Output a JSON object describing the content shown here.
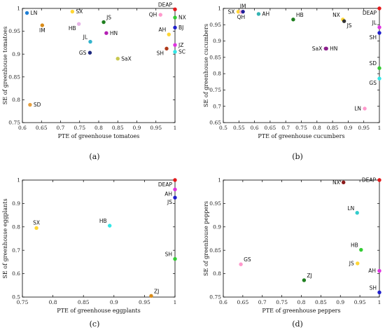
{
  "chart_data": [
    {
      "type": "scatter",
      "caption": "(a)",
      "xlabel": "PTE of greenhouse tomatoes",
      "ylabel": "SE of greenhouse tomatoes",
      "xlim": [
        0.6,
        1.0
      ],
      "ylim": [
        0.75,
        1.0
      ],
      "xticks": [
        "0.6",
        "0.65",
        "0.7",
        "0.75",
        "0.8",
        "0.85",
        "0.9",
        "0.95",
        "1"
      ],
      "yticks": [
        "0.75",
        "0.8",
        "0.85",
        "0.9",
        "0.95",
        "1"
      ],
      "points": [
        {
          "label": "DEAP",
          "x": 1.0,
          "y": 0.998,
          "color": "#e41a1c",
          "lpos": "left-above"
        },
        {
          "label": "QH",
          "x": 0.962,
          "y": 0.986,
          "color": "#ff99cc",
          "lpos": "left"
        },
        {
          "label": "NX",
          "x": 1.0,
          "y": 0.98,
          "color": "#33cc33",
          "lpos": "right"
        },
        {
          "label": "BJ",
          "x": 1.0,
          "y": 0.958,
          "color": "#1f1fcc",
          "lpos": "right"
        },
        {
          "label": "AH",
          "x": 0.984,
          "y": 0.943,
          "color": "#ffd633",
          "lpos": "left-above"
        },
        {
          "label": "JZ",
          "x": 1.0,
          "y": 0.92,
          "color": "#e033e0",
          "lpos": "right"
        },
        {
          "label": "SH",
          "x": 0.978,
          "y": 0.912,
          "color": "#b03a1a",
          "lpos": "left-below"
        },
        {
          "label": "SC",
          "x": 1.0,
          "y": 0.905,
          "color": "#33e6e6",
          "lpos": "right"
        },
        {
          "label": "LN",
          "x": 0.612,
          "y": 0.99,
          "color": "#1f7fd6",
          "lpos": "right"
        },
        {
          "label": "SX",
          "x": 0.731,
          "y": 0.993,
          "color": "#ffd633",
          "lpos": "right"
        },
        {
          "label": "IM",
          "x": 0.652,
          "y": 0.963,
          "color": "#d98c1a",
          "lpos": "below"
        },
        {
          "label": "HB",
          "x": 0.748,
          "y": 0.966,
          "color": "#e6b3e6",
          "lpos": "left-below"
        },
        {
          "label": "JS",
          "x": 0.813,
          "y": 0.97,
          "color": "#1f7f1f",
          "lpos": "right-above"
        },
        {
          "label": "HN",
          "x": 0.82,
          "y": 0.946,
          "color": "#b31fb3",
          "lpos": "right"
        },
        {
          "label": "JL",
          "x": 0.778,
          "y": 0.927,
          "color": "#33b3cc",
          "lpos": "left-above"
        },
        {
          "label": "GS",
          "x": 0.777,
          "y": 0.903,
          "color": "#1f2a7f",
          "lpos": "left"
        },
        {
          "label": "SaX",
          "x": 0.85,
          "y": 0.89,
          "color": "#c8c850",
          "lpos": "right"
        },
        {
          "label": "SD",
          "x": 0.62,
          "y": 0.789,
          "color": "#e6a040",
          "lpos": "right"
        }
      ]
    },
    {
      "type": "scatter",
      "caption": "(b)",
      "xlabel": "PTE of greenhouse cucumbers",
      "ylabel": "SE of greenhouse cucumbers",
      "xlim": [
        0.5,
        1.0
      ],
      "ylim": [
        0.65,
        1.0
      ],
      "xticks": [
        "0.5",
        "0.55",
        "0.6",
        "0.65",
        "0.7",
        "0.75",
        "0.8",
        "0.85",
        "0.9",
        "0.95",
        "1"
      ],
      "yticks": [
        "0.65",
        "0.7",
        "0.75",
        "0.8",
        "0.85",
        "0.9",
        "0.95",
        "1"
      ],
      "points": [
        {
          "label": "DEAP",
          "x": 1.0,
          "y": 1.0,
          "color": "#e41a1c",
          "lpos": "left-below"
        },
        {
          "label": "JL",
          "x": 1.0,
          "y": 0.942,
          "color": "#e033e0",
          "lpos": "left-above"
        },
        {
          "label": "SH",
          "x": 1.0,
          "y": 0.925,
          "color": "#1f1fcc",
          "lpos": "left-below"
        },
        {
          "label": "SD",
          "x": 1.0,
          "y": 0.817,
          "color": "#33cc33",
          "lpos": "left-above"
        },
        {
          "label": "GS",
          "x": 1.0,
          "y": 0.785,
          "color": "#33e6e6",
          "lpos": "left-below"
        },
        {
          "label": "LN",
          "x": 0.953,
          "y": 0.693,
          "color": "#ff99cc",
          "lpos": "left"
        },
        {
          "label": "SX",
          "x": 0.548,
          "y": 0.99,
          "color": "#ffd633",
          "lpos": "left"
        },
        {
          "label": "QH",
          "x": 0.557,
          "y": 0.989,
          "color": "#ffb3d9",
          "lpos": "below"
        },
        {
          "label": "IM",
          "x": 0.563,
          "y": 0.99,
          "color": "#1f1f99",
          "lpos": "above"
        },
        {
          "label": "AH",
          "x": 0.613,
          "y": 0.983,
          "color": "#33b3b3",
          "lpos": "right"
        },
        {
          "label": "HB",
          "x": 0.724,
          "y": 0.966,
          "color": "#1f7f1f",
          "lpos": "right-above"
        },
        {
          "label": "NX",
          "x": 0.883,
          "y": 0.966,
          "color": "#ffd633",
          "lpos": "left-above"
        },
        {
          "label": "JS",
          "x": 0.887,
          "y": 0.961,
          "color": "#333333",
          "lpos": "right-below"
        },
        {
          "label": "SaX",
          "x": 0.828,
          "y": 0.877,
          "color": "#8c1f8c",
          "lpos": "left"
        },
        {
          "label": "HN",
          "x": 0.83,
          "y": 0.877,
          "color": "#8c1f8c",
          "lpos": "right"
        }
      ]
    },
    {
      "type": "scatter",
      "caption": "(c)",
      "xlabel": "PTE of  greenhouse eggplants",
      "ylabel": "SE of  greenhouse eggplants",
      "xlim": [
        0.75,
        1.0
      ],
      "ylim": [
        0.5,
        1.0
      ],
      "xticks": [
        "0.75",
        "0.8",
        "0.85",
        "0.9",
        "0.95",
        "1"
      ],
      "yticks": [
        "0.5",
        "0.6",
        "0.7",
        "0.8",
        "0.9",
        "1"
      ],
      "points": [
        {
          "label": "DEAP",
          "x": 1.0,
          "y": 1.0,
          "color": "#e41a1c",
          "lpos": "left-below"
        },
        {
          "label": "AH",
          "x": 1.0,
          "y": 0.96,
          "color": "#e033e0",
          "lpos": "left-below"
        },
        {
          "label": "JS",
          "x": 1.0,
          "y": 0.925,
          "color": "#1f1fcc",
          "lpos": "left-below"
        },
        {
          "label": "SX",
          "x": 0.773,
          "y": 0.795,
          "color": "#ffd633",
          "lpos": "above"
        },
        {
          "label": "HB",
          "x": 0.893,
          "y": 0.805,
          "color": "#33e6e6",
          "lpos": "left-above"
        },
        {
          "label": "SH",
          "x": 1.0,
          "y": 0.663,
          "color": "#33cc33",
          "lpos": "left-above"
        },
        {
          "label": "ZJ",
          "x": 0.961,
          "y": 0.505,
          "color": "#d98c1a",
          "lpos": "right-above"
        }
      ]
    },
    {
      "type": "scatter",
      "caption": "(d)",
      "xlabel": "PTE of greenhouse peppers",
      "ylabel": "SE of greenhouse peppers",
      "xlim": [
        0.6,
        1.0
      ],
      "ylim": [
        0.75,
        1.0
      ],
      "xticks": [
        "0.6",
        "0.65",
        "0.7",
        "0.75",
        "0.8",
        "0.85",
        "0.9",
        "0.95",
        "1"
      ],
      "yticks": [
        "0.75",
        "0.8",
        "0.85",
        "0.9",
        "0.95",
        "1"
      ],
      "points": [
        {
          "label": "DEAP",
          "x": 1.0,
          "y": 1.0,
          "color": "#e41a1c",
          "lpos": "left"
        },
        {
          "label": "NX",
          "x": 0.908,
          "y": 0.995,
          "color": "#8c1a1a",
          "lpos": "left"
        },
        {
          "label": "LN",
          "x": 0.943,
          "y": 0.93,
          "color": "#33cccc",
          "lpos": "left-above"
        },
        {
          "label": "HB",
          "x": 0.953,
          "y": 0.851,
          "color": "#33cc33",
          "lpos": "left-above"
        },
        {
          "label": "JS",
          "x": 0.944,
          "y": 0.822,
          "color": "#ffd633",
          "lpos": "left"
        },
        {
          "label": "AH",
          "x": 1.0,
          "y": 0.806,
          "color": "#e033e0",
          "lpos": "left"
        },
        {
          "label": "GS",
          "x": 0.645,
          "y": 0.82,
          "color": "#ff99cc",
          "lpos": "right-above"
        },
        {
          "label": "ZJ",
          "x": 0.807,
          "y": 0.786,
          "color": "#1f7f1f",
          "lpos": "right-above"
        },
        {
          "label": "SH",
          "x": 1.0,
          "y": 0.76,
          "color": "#1f1fcc",
          "lpos": "left-above"
        }
      ]
    }
  ]
}
